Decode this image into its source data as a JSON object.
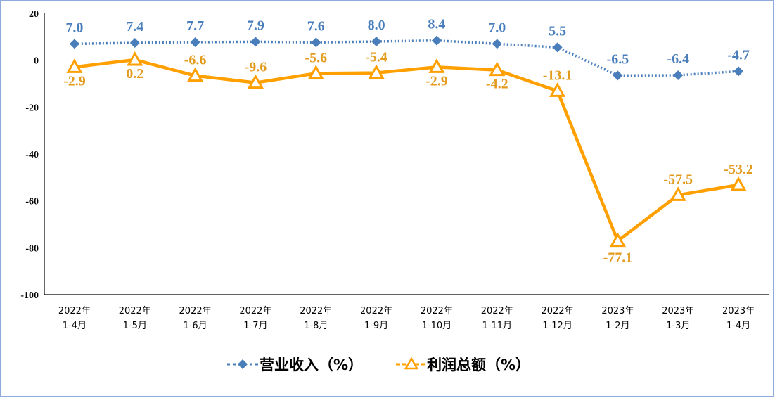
{
  "chart_data": {
    "type": "line",
    "categories": [
      [
        "2022年",
        "1-4月"
      ],
      [
        "2022年",
        "1-5月"
      ],
      [
        "2022年",
        "1-6月"
      ],
      [
        "2022年",
        "1-7月"
      ],
      [
        "2022年",
        "1-8月"
      ],
      [
        "2022年",
        "1-9月"
      ],
      [
        "2022年",
        "1-10月"
      ],
      [
        "2022年",
        "1-11月"
      ],
      [
        "2022年",
        "1-12月"
      ],
      [
        "2023年",
        "1-2月"
      ],
      [
        "2023年",
        "1-3月"
      ],
      [
        "2023年",
        "1-4月"
      ]
    ],
    "series": [
      {
        "name": "营业收入（%）",
        "values": [
          7.0,
          7.4,
          7.7,
          7.9,
          7.6,
          8.0,
          8.4,
          7.0,
          5.5,
          -6.5,
          -6.4,
          -4.7
        ],
        "labels": [
          "7.0",
          "7.4",
          "7.7",
          "7.9",
          "7.6",
          "8.0",
          "8.4",
          "7.0",
          "5.5",
          "-6.5",
          "-6.4",
          "-4.7"
        ],
        "color": "#4a7ebb",
        "label_color": "#4a7ebb",
        "marker": "diamond",
        "dashed": true
      },
      {
        "name": "利润总额（%）",
        "values": [
          -2.9,
          0.2,
          -6.6,
          -9.6,
          -5.6,
          -5.4,
          -2.9,
          -4.2,
          -13.1,
          -77.1,
          -57.5,
          -53.2
        ],
        "labels": [
          "-2.9",
          "0.2",
          "-6.6",
          "-9.6",
          "-5.6",
          "-5.4",
          "-2.9",
          "-4.2",
          "-13.1",
          "-77.1",
          "-57.5",
          "-53.2"
        ],
        "color": "#ffa000",
        "label_color": "#e39b1e",
        "marker": "triangle",
        "dashed": false
      }
    ],
    "yticks": [
      20,
      0,
      -20,
      -40,
      -60,
      -80,
      -100
    ],
    "ylim": [
      -100,
      20
    ],
    "grid": false,
    "legend_position": "bottom"
  }
}
